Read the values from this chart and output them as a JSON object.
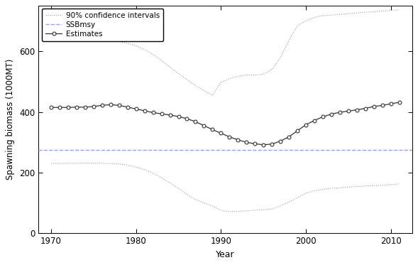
{
  "years": [
    1970,
    1971,
    1972,
    1973,
    1974,
    1975,
    1976,
    1977,
    1978,
    1979,
    1980,
    1981,
    1982,
    1983,
    1984,
    1985,
    1986,
    1987,
    1988,
    1989,
    1990,
    1991,
    1992,
    1993,
    1994,
    1995,
    1996,
    1997,
    1998,
    1999,
    2000,
    2001,
    2002,
    2003,
    2004,
    2005,
    2006,
    2007,
    2008,
    2009,
    2010,
    2011
  ],
  "estimates": [
    415,
    415,
    415,
    416,
    416,
    418,
    422,
    424,
    422,
    416,
    410,
    404,
    398,
    394,
    390,
    385,
    378,
    368,
    355,
    342,
    330,
    318,
    308,
    300,
    295,
    292,
    294,
    304,
    318,
    338,
    358,
    372,
    384,
    393,
    399,
    403,
    407,
    412,
    418,
    422,
    427,
    432
  ],
  "upper_ci": [
    635,
    636,
    637,
    637,
    637,
    637,
    636,
    635,
    632,
    627,
    618,
    606,
    590,
    570,
    548,
    527,
    507,
    488,
    470,
    455,
    498,
    510,
    518,
    522,
    522,
    525,
    540,
    580,
    635,
    685,
    700,
    712,
    718,
    720,
    722,
    724,
    727,
    729,
    731,
    733,
    735,
    737
  ],
  "lower_ci": [
    230,
    230,
    231,
    231,
    231,
    231,
    231,
    230,
    228,
    225,
    218,
    210,
    198,
    183,
    166,
    148,
    128,
    112,
    100,
    90,
    75,
    72,
    72,
    74,
    76,
    77,
    80,
    90,
    103,
    117,
    132,
    140,
    145,
    148,
    150,
    152,
    154,
    156,
    157,
    158,
    160,
    163
  ],
  "ssbmsy": 275,
  "estimate_color": "#333333",
  "ci_color": "#999999",
  "ssbmsy_color": "#9999ff",
  "xlabel": "Year",
  "ylabel": "Spawning biomass (1000MT)",
  "xlim": [
    1968.5,
    2012.5
  ],
  "ylim": [
    0,
    750
  ],
  "yticks": [
    0,
    200,
    400,
    600
  ],
  "xticks": [
    1970,
    1980,
    1990,
    2000,
    2010
  ],
  "legend_estimates": "Estimates",
  "legend_ci": "90% confidence intervals",
  "legend_ssbmsy": "SSBmsy",
  "bg_color": "#f0f0f0"
}
